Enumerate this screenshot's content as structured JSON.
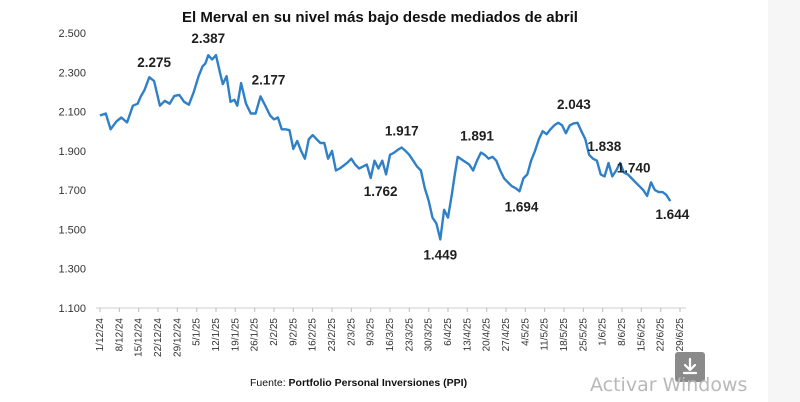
{
  "chart_data": {
    "type": "line",
    "title": "El Merval en su nivel más bajo desde mediados de abril",
    "ylim": [
      1100,
      2500
    ],
    "yticks": [
      2500,
      2300,
      2100,
      1900,
      1700,
      1500,
      1300,
      1100
    ],
    "ytick_labels": [
      "2.500",
      "2.300",
      "2.100",
      "1.900",
      "1.700",
      "1.500",
      "1.300",
      "1.100"
    ],
    "xtick_labels": [
      "1/12/24",
      "8/12/24",
      "15/12/24",
      "22/12/24",
      "29/12/24",
      "5/1/25",
      "12/1/25",
      "19/1/25",
      "26/1/25",
      "2/2/25",
      "9/2/25",
      "16/2/25",
      "23/2/25",
      "2/3/25",
      "9/3/25",
      "16/3/25",
      "23/3/25",
      "30/3/25",
      "6/4/25",
      "13/4/25",
      "20/4/25",
      "27/4/25",
      "4/5/25",
      "11/5/25",
      "18/5/25",
      "25/5/25",
      "1/6/25",
      "8/6/25",
      "15/6/25",
      "22/6/25",
      "29/6/25"
    ],
    "series": [
      {
        "name": "Merval",
        "color": "#2f80c6",
        "x": [
          0,
          0.3,
          0.55,
          0.85,
          1.1,
          1.4,
          1.7,
          1.95,
          2.1,
          2.3,
          2.55,
          2.8,
          3.1,
          3.35,
          3.6,
          3.85,
          4.1,
          4.35,
          4.6,
          4.85,
          5.1,
          5.3,
          5.45,
          5.6,
          5.8,
          6.0,
          6.2,
          6.35,
          6.55,
          6.75,
          6.95,
          7.1,
          7.3,
          7.55,
          7.8,
          8.05,
          8.3,
          8.55,
          8.8,
          9.0,
          9.2,
          9.4,
          9.6,
          9.8,
          10.0,
          10.2,
          10.4,
          10.6,
          10.8,
          11.0,
          11.2,
          11.4,
          11.6,
          11.8,
          12.0,
          12.2,
          12.4,
          12.6,
          12.8,
          13.0,
          13.2,
          13.4,
          13.6,
          13.8,
          14.0,
          14.2,
          14.4,
          14.6,
          14.8,
          15.0,
          15.2,
          15.4,
          15.6,
          15.8,
          16.0,
          16.2,
          16.4,
          16.6,
          16.8,
          17.0,
          17.2,
          17.4,
          17.6,
          17.8,
          18.0,
          18.2,
          18.35,
          18.5,
          18.65,
          18.8,
          18.95,
          19.1,
          19.3,
          19.5,
          19.7,
          19.9,
          20.1,
          20.3,
          20.5,
          20.7,
          20.9,
          21.1,
          21.3,
          21.5,
          21.7,
          21.9,
          22.1,
          22.3,
          22.5,
          22.7,
          22.9,
          23.1,
          23.3,
          23.5,
          23.7,
          23.9,
          24.1,
          24.3,
          24.5,
          24.7,
          24.9,
          25.1,
          25.3,
          25.5,
          25.7,
          25.9,
          26.1,
          26.3,
          26.5,
          26.7,
          26.9,
          27.1,
          27.3,
          27.5,
          27.7,
          27.9,
          28.1,
          28.3,
          28.5,
          28.7,
          28.9,
          29.1,
          29.3,
          29.5
        ],
        "y": [
          2080,
          2090,
          2010,
          2050,
          2070,
          2045,
          2130,
          2140,
          2175,
          2210,
          2275,
          2255,
          2130,
          2155,
          2140,
          2180,
          2185,
          2150,
          2135,
          2200,
          2280,
          2330,
          2345,
          2387,
          2365,
          2387,
          2300,
          2240,
          2280,
          2150,
          2160,
          2130,
          2245,
          2140,
          2090,
          2090,
          2177,
          2130,
          2080,
          2060,
          2070,
          2010,
          2010,
          2005,
          1910,
          1950,
          1900,
          1860,
          1960,
          1980,
          1960,
          1940,
          1940,
          1860,
          1900,
          1800,
          1810,
          1825,
          1840,
          1860,
          1830,
          1810,
          1820,
          1830,
          1762,
          1850,
          1810,
          1850,
          1780,
          1880,
          1890,
          1905,
          1917,
          1900,
          1880,
          1850,
          1820,
          1800,
          1710,
          1645,
          1560,
          1530,
          1449,
          1600,
          1560,
          1680,
          1780,
          1870,
          1860,
          1850,
          1840,
          1830,
          1800,
          1850,
          1891,
          1880,
          1860,
          1870,
          1850,
          1800,
          1760,
          1740,
          1720,
          1710,
          1694,
          1760,
          1780,
          1850,
          1900,
          1960,
          2000,
          1985,
          2010,
          2030,
          2043,
          2030,
          1990,
          2030,
          2040,
          2043,
          2000,
          1960,
          1880,
          1860,
          1850,
          1780,
          1770,
          1838,
          1770,
          1800,
          1838,
          1790,
          1780,
          1760,
          1740,
          1720,
          1700,
          1670,
          1740,
          1700,
          1690,
          1690,
          1675,
          1644
        ]
      }
    ],
    "annotations": [
      {
        "label": "2.275",
        "x": 2.8,
        "y": 2275
      },
      {
        "label": "2.387",
        "x": 5.6,
        "y": 2387
      },
      {
        "label": "2.177",
        "x": 8.3,
        "y": 2177
      },
      {
        "label": "1.917",
        "x": 15.4,
        "y": 1917
      },
      {
        "label": "1.762",
        "x": 14.0,
        "y": 1762
      },
      {
        "label": "1.891",
        "x": 19.5,
        "y": 1891
      },
      {
        "label": "1.449",
        "x": 17.6,
        "y": 1449
      },
      {
        "label": "1.694",
        "x": 21.7,
        "y": 1694
      },
      {
        "label": "2.043",
        "x": 24.1,
        "y": 2043
      },
      {
        "label": "1.838",
        "x": 26.5,
        "y": 1838
      },
      {
        "label": "1.740",
        "x": 27.5,
        "y": 1740
      },
      {
        "label": "1.644",
        "x": 29.5,
        "y": 1644
      }
    ],
    "source_prefix": "Fuente: ",
    "source_name": "Portfolio Personal Inversiones (PPI)"
  },
  "watermark": "Activar Windows",
  "icons": {
    "download": "download-icon"
  }
}
